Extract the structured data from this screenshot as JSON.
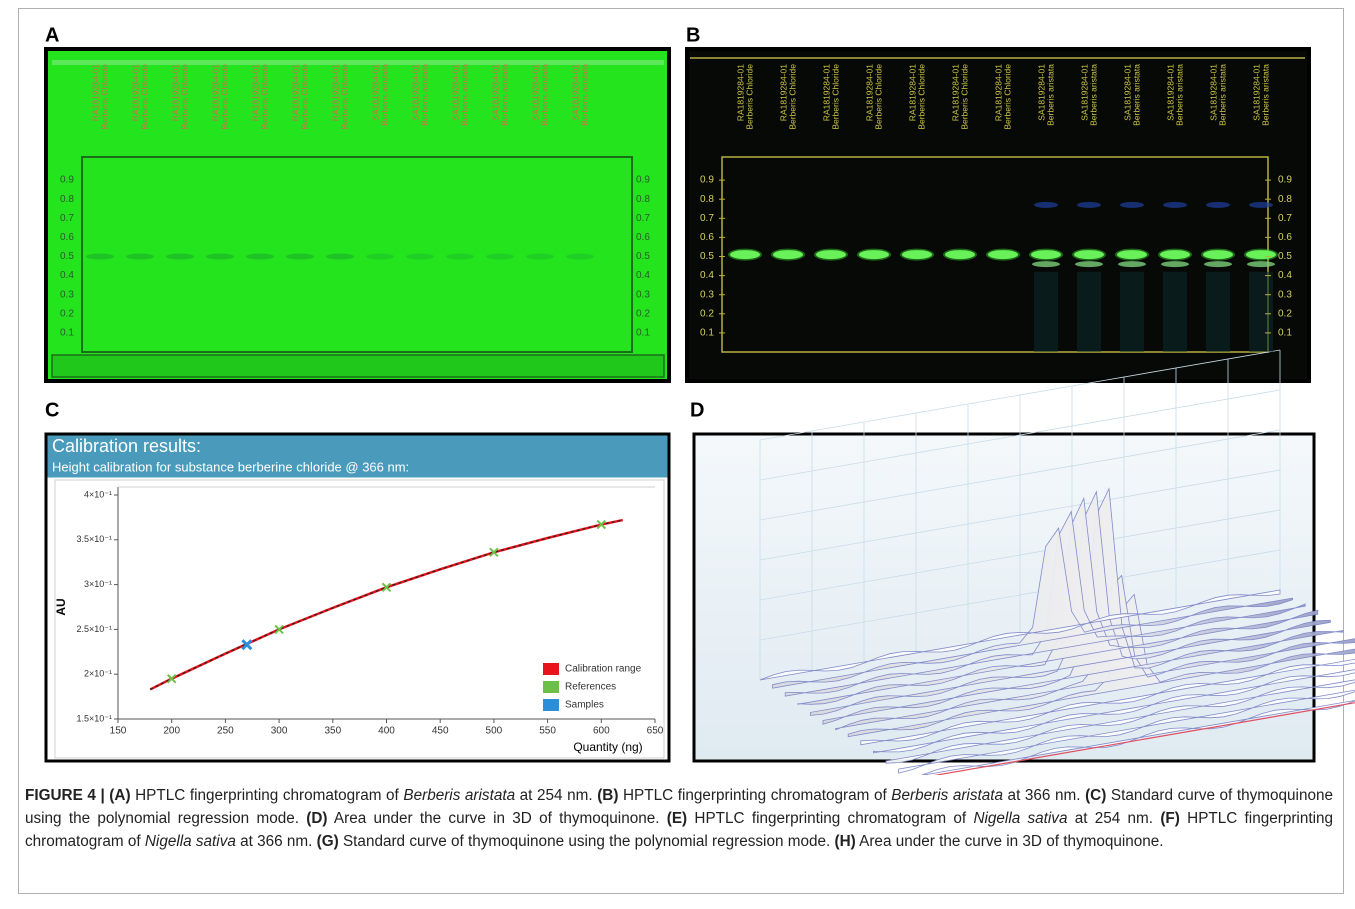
{
  "figure": {
    "panel_labels": [
      "A",
      "B",
      "C",
      "D"
    ],
    "lanes": [
      {
        "id": "RA1819284-01",
        "name": "Berberis Chloride"
      },
      {
        "id": "RA1819284-01",
        "name": "Berberis Chloride"
      },
      {
        "id": "RA1819284-01",
        "name": "Berberis Chloride"
      },
      {
        "id": "RA1819284-01",
        "name": "Berberis Chloride"
      },
      {
        "id": "RA1819284-01",
        "name": "Berberis Chloride"
      },
      {
        "id": "RA1819284-01",
        "name": "Berberis Chloride"
      },
      {
        "id": "RA1819284-01",
        "name": "Berberis Chloride"
      },
      {
        "id": "SA1819284-01",
        "name": "Berberis aristata"
      },
      {
        "id": "SA1819284-01",
        "name": "Berberis aristata"
      },
      {
        "id": "SA1819284-01",
        "name": "Berberis aristata"
      },
      {
        "id": "SA1819284-01",
        "name": "Berberis aristata"
      },
      {
        "id": "SA1819284-01",
        "name": "Berberis aristata"
      },
      {
        "id": "SA1819284-01",
        "name": "Berberis aristata"
      }
    ],
    "rf_ticks": [
      0.9,
      0.8,
      0.7,
      0.6,
      0.5,
      0.4,
      0.3,
      0.2,
      0.1
    ],
    "caption": [
      {
        "text": "FIGURE 4 | (A)",
        "style": "bold"
      },
      {
        "text": " HPTLC fingerprinting chromatogram of "
      },
      {
        "text": "Berberis aristata",
        "style": "italic"
      },
      {
        "text": " at 254 nm. "
      },
      {
        "text": "(B)",
        "style": "bold"
      },
      {
        "text": " HPTLC fingerprinting chromatogram of "
      },
      {
        "text": "Berberis aristata",
        "style": "italic"
      },
      {
        "text": " at 366 nm. "
      },
      {
        "text": "(C)",
        "style": "bold"
      },
      {
        "text": " Standard curve of thymoquinone using the polynomial regression mode. "
      },
      {
        "text": "(D)",
        "style": "bold"
      },
      {
        "text": " Area under the curve in 3D of thymoquinone. "
      },
      {
        "text": "(E)",
        "style": "bold"
      },
      {
        "text": " HPTLC fingerprinting chromatogram of "
      },
      {
        "text": "Nigella sativa",
        "style": "italic"
      },
      {
        "text": " at 254 nm. "
      },
      {
        "text": "(F)",
        "style": "bold"
      },
      {
        "text": " HPTLC fingerprinting chromatogram of "
      },
      {
        "text": "Nigella sativa",
        "style": "italic"
      },
      {
        "text": " at 366 nm. "
      },
      {
        "text": "(G)",
        "style": "bold"
      },
      {
        "text": " Standard curve of thymoquinone using the polynomial regression mode. "
      },
      {
        "text": "(H)",
        "style": "bold"
      },
      {
        "text": " Area under the curve in 3D of thymoquinone."
      }
    ]
  },
  "chart_data": {
    "type": "scatter",
    "title": "Calibration results:",
    "subtitle": "Height calibration for substance berberine chloride @ 366 nm:",
    "xlabel": "Quantity (ng)",
    "ylabel": "AU",
    "xlim": [
      150,
      650
    ],
    "xticks": [
      150,
      200,
      250,
      300,
      350,
      400,
      450,
      500,
      550,
      600,
      650
    ],
    "ylim": [
      0.15,
      0.4
    ],
    "yticks": [
      {
        "value": 0.15,
        "label": "1.5×10⁻¹"
      },
      {
        "value": 0.2,
        "label": "2×10⁻¹"
      },
      {
        "value": 0.25,
        "label": "2.5×10⁻¹"
      },
      {
        "value": 0.3,
        "label": "3×10⁻¹"
      },
      {
        "value": 0.35,
        "label": "3.5×10⁻¹"
      },
      {
        "value": 0.4,
        "label": "4×10⁻¹"
      }
    ],
    "legend": "lower right",
    "series": [
      {
        "name": "Calibration range",
        "color": "#e8141c",
        "mark": "line",
        "x": [
          180,
          200,
          250,
          300,
          350,
          400,
          450,
          500,
          550,
          600,
          620
        ],
        "values": [
          0.183,
          0.195,
          0.223,
          0.25,
          0.274,
          0.297,
          0.317,
          0.336,
          0.352,
          0.367,
          0.372
        ]
      },
      {
        "name": "References",
        "color": "#6cc04a",
        "mark": "cross",
        "x": [
          200,
          300,
          400,
          500,
          600
        ],
        "values": [
          0.195,
          0.25,
          0.297,
          0.336,
          0.367
        ]
      },
      {
        "name": "Samples",
        "color": "#2a8fd8",
        "mark": "cross",
        "x": [
          270
        ],
        "values": [
          0.233
        ]
      }
    ]
  }
}
